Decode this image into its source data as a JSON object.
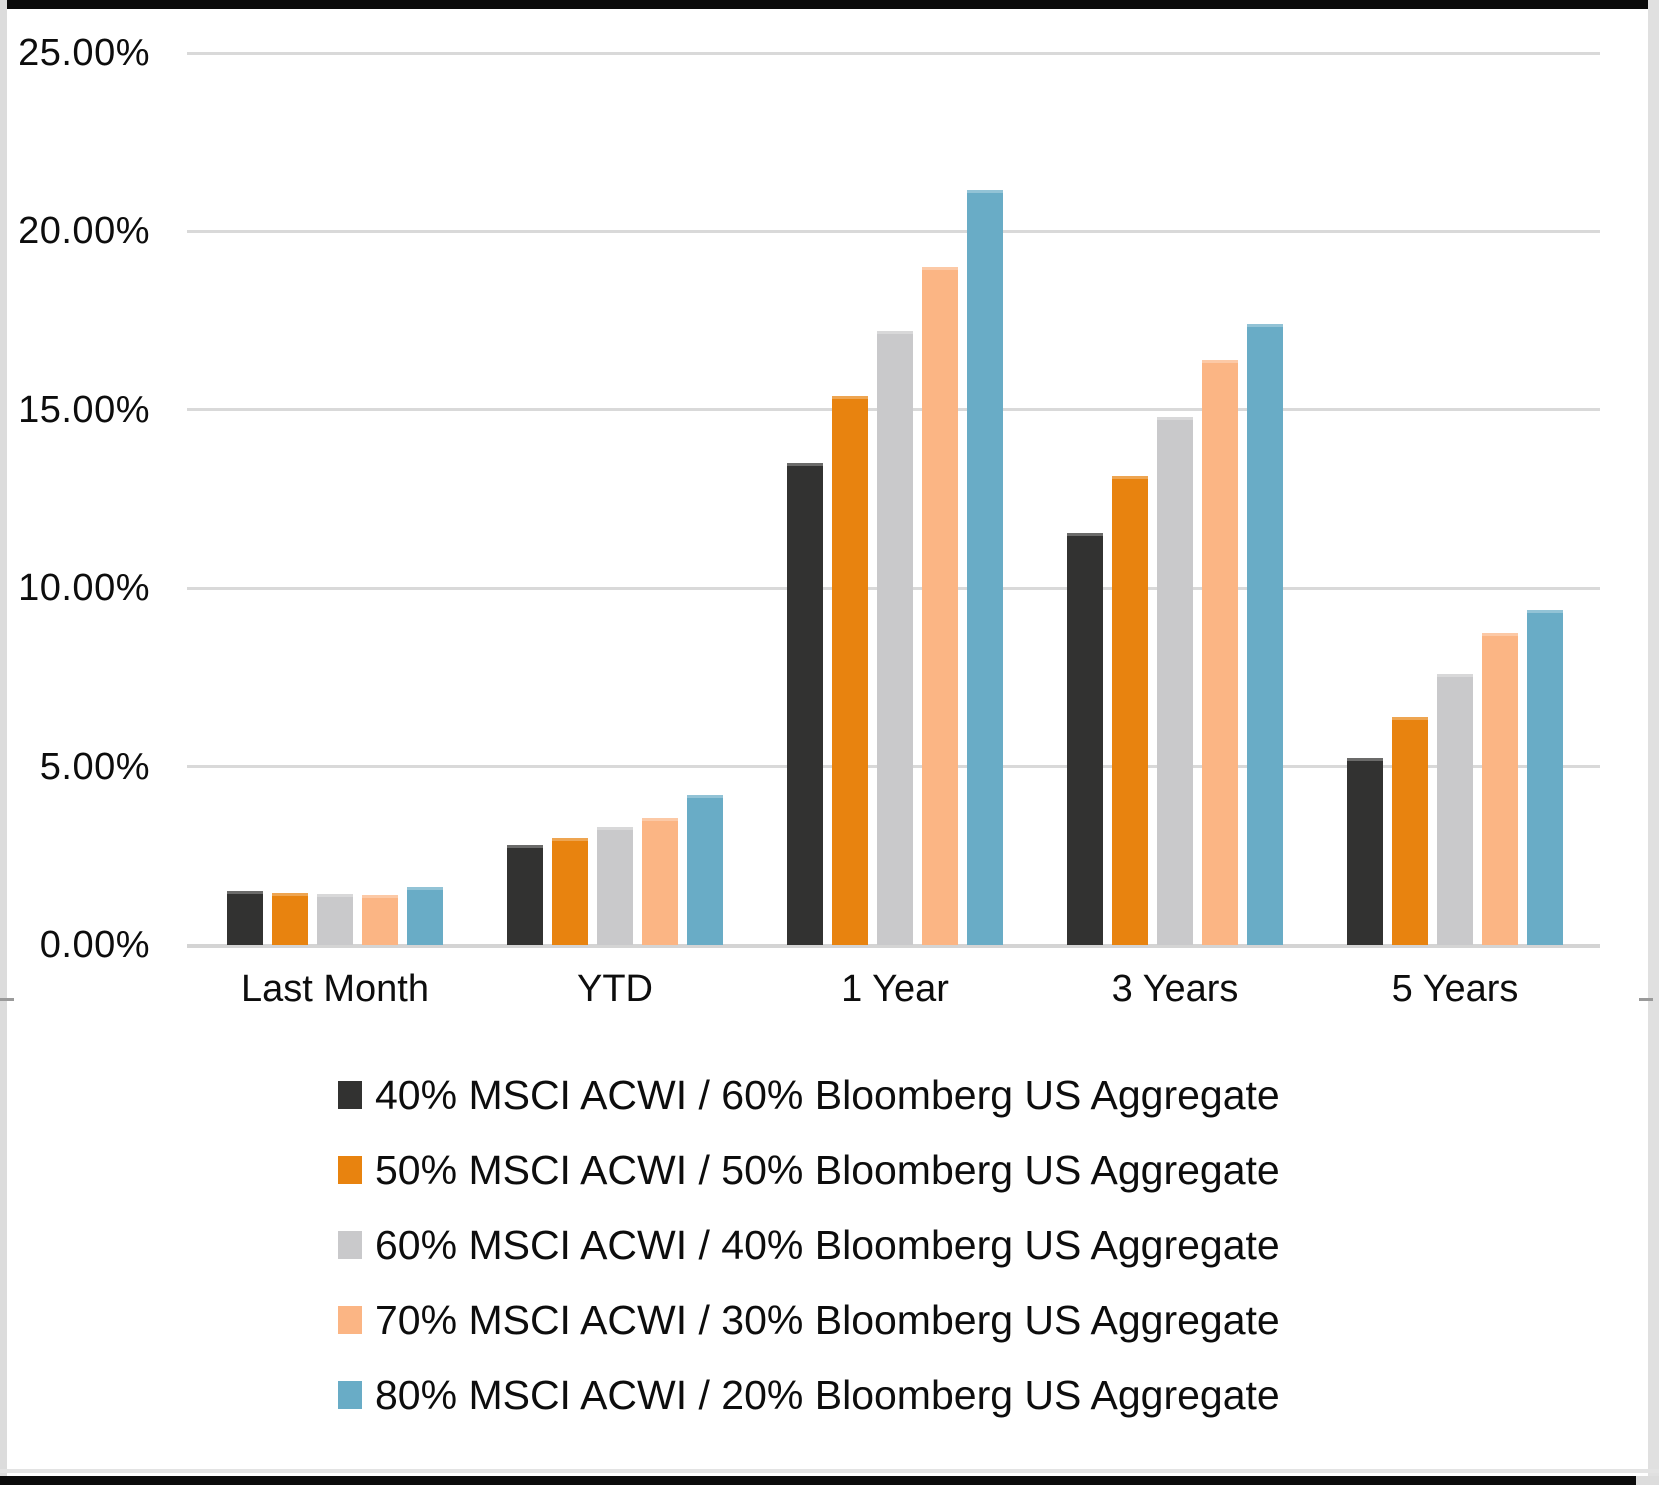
{
  "chart_data": {
    "type": "bar",
    "title": "",
    "xlabel": "",
    "ylabel": "",
    "categories": [
      "Last Month",
      "YTD",
      "1 Year",
      "3 Years",
      "5 Years"
    ],
    "series": [
      {
        "name": "40% MSCI ACWI / 60% Bloomberg US Aggregate",
        "color": "#323231",
        "values": [
          1.5,
          2.8,
          13.5,
          11.55,
          5.25
        ]
      },
      {
        "name": "50% MSCI ACWI / 50% Bloomberg US Aggregate",
        "color": "#e8830f",
        "values": [
          1.45,
          3.0,
          15.4,
          13.15,
          6.4
        ]
      },
      {
        "name": "60% MSCI ACWI / 40% Bloomberg US Aggregate",
        "color": "#c9c9cb",
        "values": [
          1.43,
          3.3,
          17.2,
          14.8,
          7.6
        ]
      },
      {
        "name": "70% MSCI ACWI / 30% Bloomberg US Aggregate",
        "color": "#fbb584",
        "values": [
          1.4,
          3.55,
          19.0,
          16.4,
          8.75
        ]
      },
      {
        "name": "80% MSCI ACWI / 20% Bloomberg US Aggregate",
        "color": "#69acc6",
        "values": [
          1.62,
          4.2,
          21.15,
          17.4,
          9.4
        ]
      }
    ],
    "ylim": [
      0,
      25
    ],
    "ytick_step": 5,
    "ytick_labels": [
      "0.00%",
      "5.00%",
      "10.00%",
      "15.00%",
      "20.00%",
      "25.00%"
    ],
    "grid": true,
    "gridline_color": "#d9d9d9",
    "legend_position": "bottom-left"
  }
}
